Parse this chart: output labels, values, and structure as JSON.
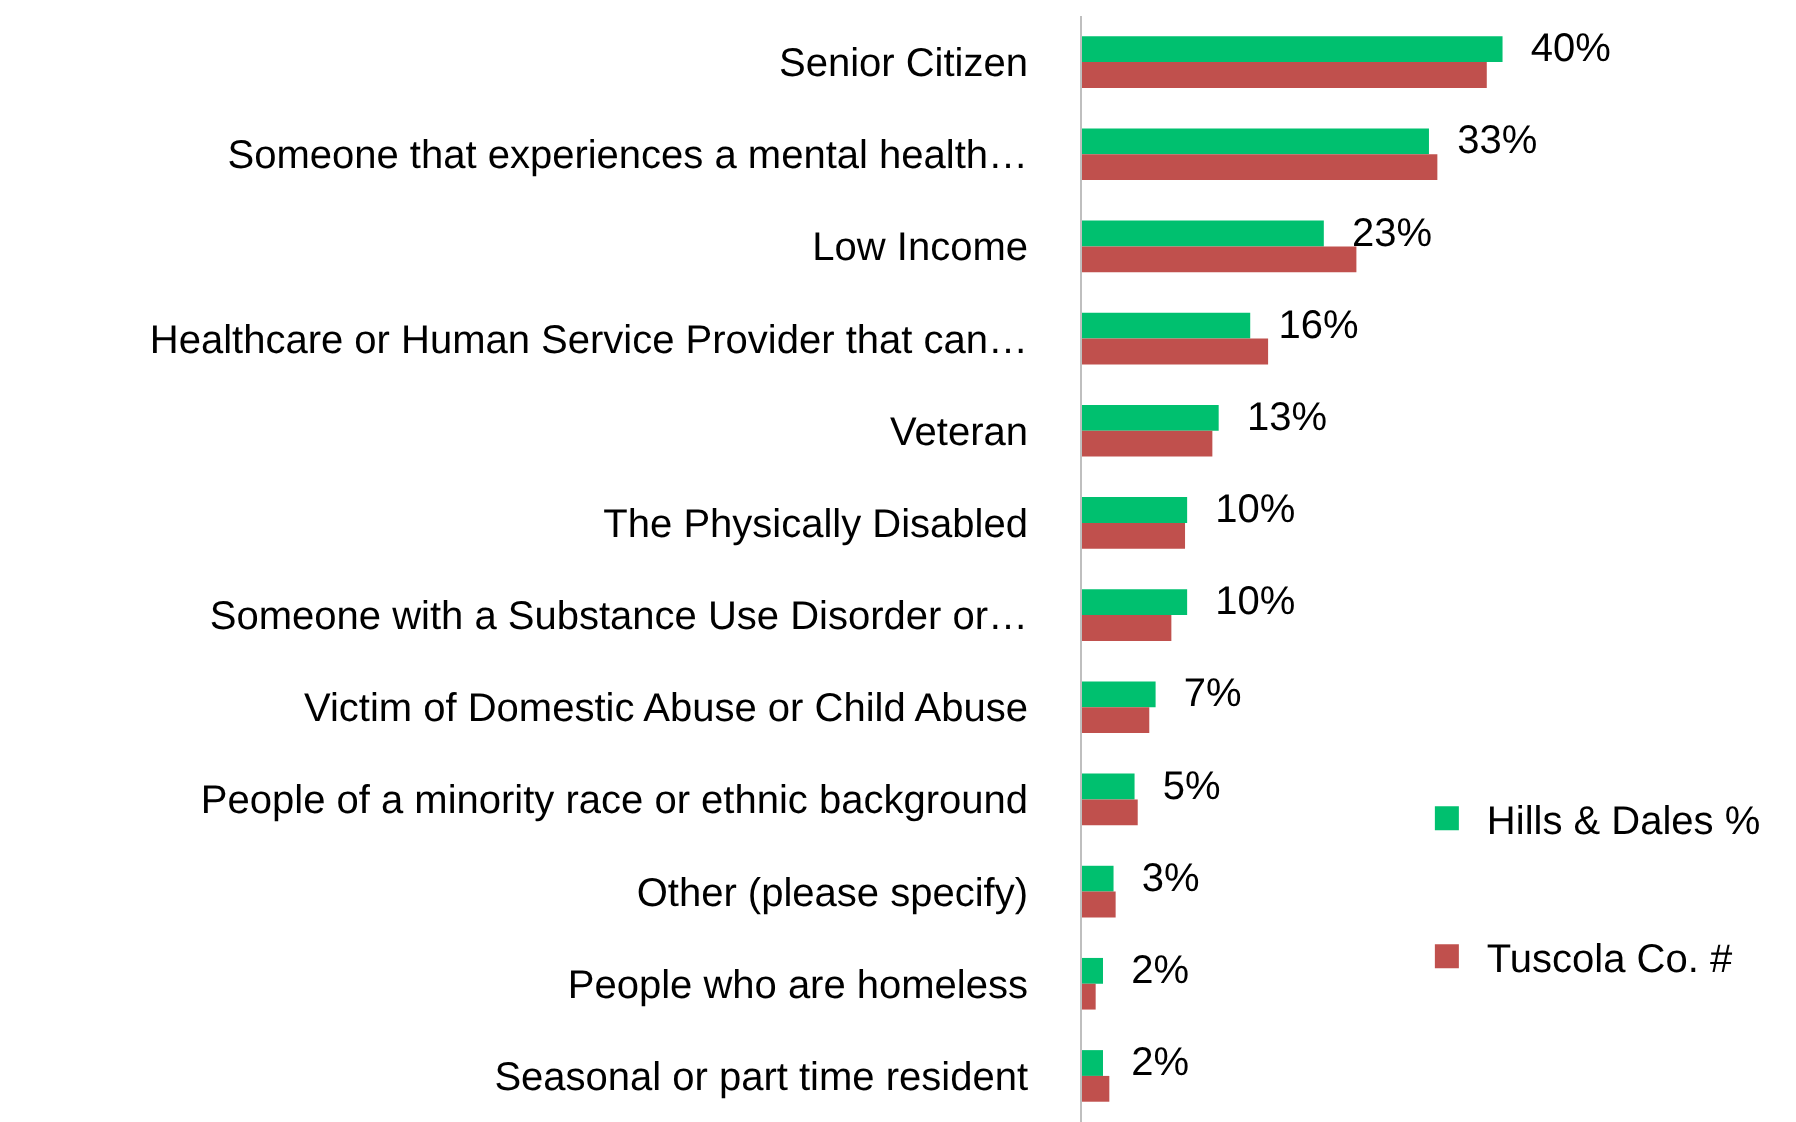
{
  "chart_data": {
    "type": "bar",
    "orientation": "horizontal",
    "categories": [
      "Senior Citizen",
      "Someone that experiences a mental health…",
      "Low Income",
      "Healthcare or Human Service Provider that can…",
      "Veteran",
      "The Physically Disabled",
      "Someone with a Substance Use Disorder or…",
      "Victim of Domestic Abuse or Child Abuse",
      "People of a minority race or ethnic background",
      "Other (please specify)",
      "People who are homeless",
      "Seasonal or part time resident"
    ],
    "series": [
      {
        "name": "Hills & Dales %",
        "color": "#00c06f",
        "values": [
          40,
          33,
          23,
          16,
          13,
          10,
          10,
          7,
          5,
          3,
          2,
          2
        ],
        "value_labels": [
          "40%",
          "33%",
          "23%",
          "16%",
          "13%",
          "10%",
          "10%",
          "7%",
          "5%",
          "3%",
          "2%",
          "2%"
        ]
      },
      {
        "name": "Tuscola Co. #",
        "color": "#c0504d",
        "values": [
          38.5,
          33.8,
          26.1,
          17.7,
          12.4,
          9.8,
          8.5,
          6.4,
          5.3,
          3.2,
          1.3,
          2.6
        ]
      }
    ],
    "tick_labels": "y",
    "legend": "bottom right"
  }
}
